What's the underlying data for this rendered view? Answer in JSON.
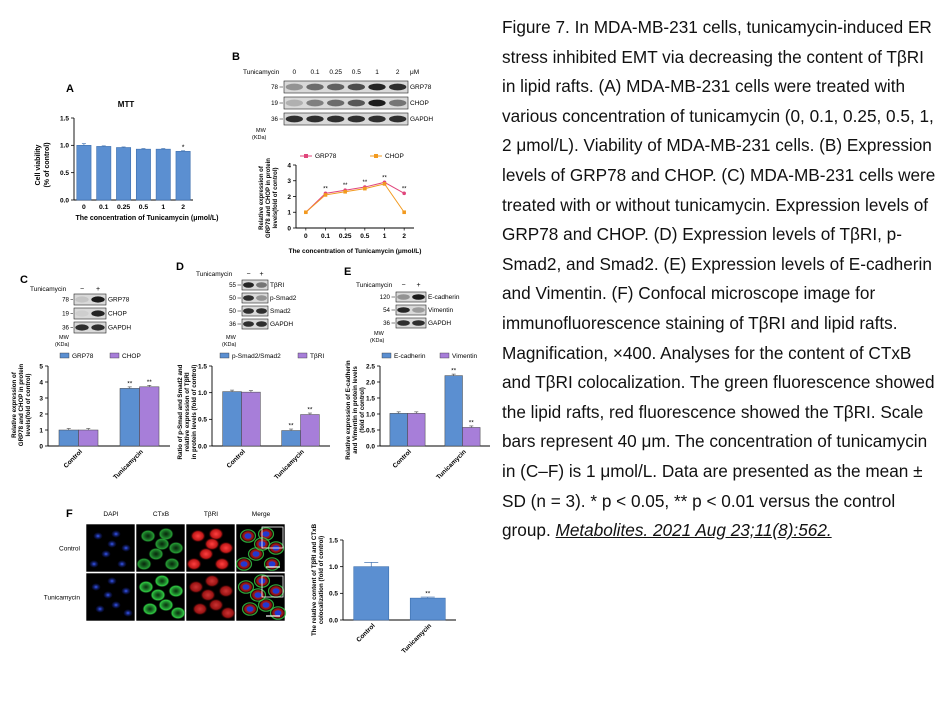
{
  "caption": {
    "text": "Figure 7. In MDA-MB-231 cells, tunicamycin-induced ER stress inhibited EMT via decreasing the content of TβRI in lipid rafts. (A) MDA-MB-231 cells were treated with various concentration of tunicamycin (0, 0.1, 0.25, 0.5, 1, 2 μmol/L). Viability of MDA-MB-231 cells. (B) Expression levels of GRP78 and CHOP. (C) MDA-MB-231 cells were treated with or without tunicamycin. Expression levels of GRP78 and CHOP. (D) Expression levels of TβRI, p-Smad2, and Smad2. (E) Expression levels of E-cadherin and Vimentin. (F) Confocal microscope image for immunofluorescence staining of TβRI and lipid rafts. Magnification, ×400. Analyses for the content of CTxB and TβRI colocalization. The green fluorescence showed the lipid rafts, red fluorescence showed the TβRI. Scale bars represent 40 μm. The concentration of tunicamycin in (C–F) is 1 μmol/L. Data are presented as the mean ± SD (n = 3). * p < 0.05, ** p < 0.01 versus the control group. ",
    "citation": "Metabolites. 2021 Aug 23;11(8):562."
  },
  "panelA": {
    "letter": "A",
    "title": "MTT",
    "ylabel_line1": "Cell viability",
    "ylabel_line2": "(% of control)",
    "xlabel": "The concentration of Tunicamycin (μmol/L)",
    "yticks": [
      "0.0",
      "0.5",
      "1.0",
      "1.5"
    ],
    "categories": [
      "0",
      "0.1",
      "0.25",
      "0.5",
      "1",
      "2"
    ],
    "values": [
      1.0,
      0.98,
      0.96,
      0.93,
      0.93,
      0.89
    ],
    "errors": [
      0.03,
      0.01,
      0.01,
      0.01,
      0.01,
      0.01
    ],
    "significance": [
      "",
      "",
      "",
      "",
      "",
      "*"
    ],
    "ylim": [
      0,
      1.5
    ],
    "bar_color": "#5b8fd1"
  },
  "panelB": {
    "letter": "B",
    "treatment_label": "Tunicamycin",
    "concentrations": [
      "0",
      "0.1",
      "0.25",
      "0.5",
      "1",
      "2"
    ],
    "unit": "μM",
    "blots": [
      {
        "mw": "78",
        "name": "GRP78"
      },
      {
        "mw": "19",
        "name": "CHOP"
      },
      {
        "mw": "36",
        "name": "GAPDH"
      }
    ],
    "mw_label_1": "MW",
    "mw_label_2": "(KDa)",
    "chart_ylabel_1": "Relative expression of",
    "chart_ylabel_2": "GRP78 and CHOP in protein",
    "chart_ylabel_3": "levels(fold of control)",
    "xlabel": "The concentration of Tunicamycin (μmol/L)",
    "yticks": [
      "0",
      "1",
      "2",
      "3",
      "4"
    ],
    "ylim": [
      0,
      4
    ],
    "series": [
      {
        "name": "GRP78",
        "values": [
          1.0,
          2.2,
          2.4,
          2.6,
          2.9,
          2.2
        ],
        "color": "#e0457b",
        "sig": [
          "",
          "**",
          "**",
          "**",
          "**",
          "**"
        ]
      },
      {
        "name": "CHOP",
        "values": [
          1.0,
          2.1,
          2.3,
          2.5,
          2.8,
          1.0
        ],
        "color": "#f29a1f",
        "sig": [
          "",
          "",
          "",
          "",
          "",
          ""
        ]
      }
    ]
  },
  "panelC": {
    "letter": "C",
    "treatment_label": "Tunicamycin",
    "lanes": [
      "−",
      "+"
    ],
    "blots": [
      {
        "mw": "78",
        "name": "GRP78"
      },
      {
        "mw": "19",
        "name": "CHOP"
      },
      {
        "mw": "36",
        "name": "GAPDH"
      }
    ],
    "mw_label_1": "MW",
    "mw_label_2": "(KDa)",
    "legend": [
      "GRP78",
      "CHOP"
    ],
    "ylabel_1": "Relative expression of",
    "ylabel_2": "GRP78 and CHOP in protein",
    "ylabel_3": "levels(fold of control)",
    "yticks": [
      "0",
      "1",
      "2",
      "3",
      "4",
      "5"
    ],
    "ylim": [
      0,
      5
    ],
    "categories": [
      "Control",
      "Tunicamycin"
    ],
    "series": [
      {
        "name": "GRP78",
        "values": [
          1.0,
          3.6
        ],
        "color": "#5b8fd1"
      },
      {
        "name": "CHOP",
        "values": [
          1.0,
          3.7
        ],
        "color": "#a77ed9"
      }
    ],
    "significance": [
      [
        "",
        ""
      ],
      [
        "**",
        "**"
      ]
    ]
  },
  "panelD": {
    "letter": "D",
    "treatment_label": "Tunicamycin",
    "lanes": [
      "−",
      "+"
    ],
    "blots": [
      {
        "mw": "55",
        "name": "TβRI"
      },
      {
        "mw": "50",
        "name": "p-Smad2"
      },
      {
        "mw": "50",
        "name": "Smad2"
      },
      {
        "mw": "36",
        "name": "GAPDH"
      }
    ],
    "mw_label_1": "MW",
    "mw_label_2": "(KDa)",
    "legend": [
      "p-Smad2/Smad2",
      "TβRI"
    ],
    "ylabel_1": "Ratio of p-Smad and Smad2 and",
    "ylabel_2": "relative expression of TβRI",
    "ylabel_3": "in protein levels (fold of control)",
    "yticks": [
      "0.0",
      "0.5",
      "1.0",
      "1.5"
    ],
    "ylim": [
      0,
      1.5
    ],
    "categories": [
      "Control",
      "Tunicamycin"
    ],
    "series": [
      {
        "name": "p-Smad2/Smad2",
        "values": [
          1.02,
          0.29
        ],
        "color": "#5b8fd1"
      },
      {
        "name": "TβRI",
        "values": [
          1.01,
          0.59
        ],
        "color": "#a77ed9"
      }
    ],
    "significance": [
      [
        "",
        ""
      ],
      [
        "**",
        "**"
      ]
    ]
  },
  "panelE": {
    "letter": "E",
    "treatment_label": "Tunicamycin",
    "lanes": [
      "−",
      "+"
    ],
    "blots": [
      {
        "mw": "120",
        "name": "E-cadherin"
      },
      {
        "mw": "54",
        "name": "Vimentin"
      },
      {
        "mw": "36",
        "name": "GAPDH"
      }
    ],
    "mw_label_1": "MW",
    "mw_label_2": "(KDa)",
    "legend": [
      "E-cadherin",
      "Vimentin"
    ],
    "ylabel_1": "Relative expression of E-cadherin",
    "ylabel_2": "and Vimentin in protein levels",
    "ylabel_3": "(fold of control)",
    "yticks": [
      "0.0",
      "0.5",
      "1.0",
      "1.5",
      "2.0",
      "2.5"
    ],
    "ylim": [
      0,
      2.5
    ],
    "categories": [
      "Control",
      "Tunicamycin"
    ],
    "series": [
      {
        "name": "E-cadherin",
        "values": [
          1.02,
          2.2
        ],
        "color": "#5b8fd1"
      },
      {
        "name": "Vimentin",
        "values": [
          1.02,
          0.58
        ],
        "color": "#a77ed9"
      }
    ],
    "significance": [
      [
        "",
        ""
      ],
      [
        "**",
        "**"
      ]
    ]
  },
  "panelF": {
    "letter": "F",
    "columns": [
      "DAPI",
      "CTxB",
      "TβRI",
      "Merge"
    ],
    "rows": [
      "Control",
      "Tunicamycin"
    ],
    "ylabel_1": "The relative content of TβRI and CTxB",
    "ylabel_2": "colocalization (fold of control)",
    "yticks": [
      "0.0",
      "0.5",
      "1.0",
      "1.5"
    ],
    "ylim": [
      0,
      1.5
    ],
    "categories": [
      "Control",
      "Tunicamycin"
    ],
    "values": [
      1.0,
      0.41
    ],
    "errors": [
      0.08,
      0.02
    ],
    "significance": [
      "",
      "**"
    ],
    "bar_color": "#5b8fd1"
  }
}
